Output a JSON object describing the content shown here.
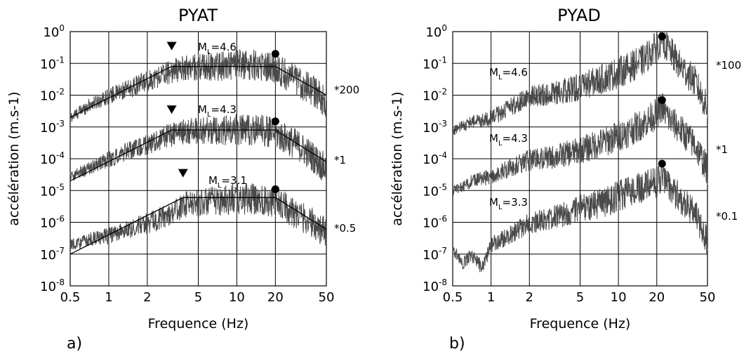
{
  "chart_data": [
    {
      "type": "line",
      "panel_label": "a)",
      "title": "PYAT",
      "xlabel": "Frequence (Hz)",
      "ylabel": "accélération (m.s-1)",
      "x_scale": "log",
      "y_scale": "log",
      "xlim": [
        0.5,
        50
      ],
      "ylim": [
        1e-08,
        1
      ],
      "xticks": [
        "0.5",
        "1",
        "2",
        "5",
        "10",
        "20",
        "50"
      ],
      "yticks": [
        "10^0",
        "10^-1",
        "10^-2",
        "10^-3",
        "10^-4",
        "10^-5",
        "10^-6",
        "10^-7",
        "10^-8"
      ],
      "grid": true,
      "series": [
        {
          "label": "M_L=4.6",
          "scale_label": "*200",
          "spectrum_points": [
            [
              0.5,
              0.002
            ],
            [
              0.7,
              0.005
            ],
            [
              1,
              0.01
            ],
            [
              1.5,
              0.018
            ],
            [
              2,
              0.03
            ],
            [
              3,
              0.06
            ],
            [
              4,
              0.08
            ],
            [
              6,
              0.09
            ],
            [
              10,
              0.1
            ],
            [
              15,
              0.1
            ],
            [
              20,
              0.08
            ],
            [
              30,
              0.03
            ],
            [
              40,
              0.015
            ],
            [
              50,
              0.006
            ]
          ],
          "model": {
            "x": [
              0.5,
              3.1,
              20,
              50
            ],
            "y": [
              0.002,
              0.08,
              0.08,
              0.01
            ]
          },
          "triangle": {
            "x": 3.1,
            "y": 0.35
          },
          "dot": {
            "x": 20,
            "y": 0.2
          }
        },
        {
          "label": "M_L=4.3",
          "scale_label": "*1",
          "spectrum_points": [
            [
              0.5,
              3e-05
            ],
            [
              0.7,
              5e-05
            ],
            [
              1,
              0.0001
            ],
            [
              1.5,
              0.0002
            ],
            [
              2,
              0.0003
            ],
            [
              3,
              0.0006
            ],
            [
              4,
              0.0008
            ],
            [
              6,
              0.0009
            ],
            [
              10,
              0.0009
            ],
            [
              15,
              0.0009
            ],
            [
              20,
              0.0007
            ],
            [
              30,
              0.0003
            ],
            [
              40,
              0.00012
            ],
            [
              50,
              5e-05
            ]
          ],
          "model": {
            "x": [
              0.5,
              3.1,
              20,
              50
            ],
            "y": [
              2e-05,
              0.0008,
              0.0008,
              8e-05
            ]
          },
          "triangle": {
            "x": 3.1,
            "y": 0.0035
          },
          "dot": {
            "x": 20,
            "y": 0.0015
          }
        },
        {
          "label": "M_L=3.1",
          "scale_label": "*0.5",
          "spectrum_points": [
            [
              0.5,
              2e-07
            ],
            [
              0.7,
              3e-07
            ],
            [
              1,
              4e-07
            ],
            [
              1.5,
              7e-07
            ],
            [
              2,
              1e-06
            ],
            [
              3,
              2e-06
            ],
            [
              4,
              4e-06
            ],
            [
              6,
              5e-06
            ],
            [
              10,
              6e-06
            ],
            [
              15,
              6e-06
            ],
            [
              20,
              5e-06
            ],
            [
              30,
              2e-06
            ],
            [
              40,
              1e-06
            ],
            [
              50,
              5e-07
            ]
          ],
          "model": {
            "x": [
              0.5,
              3.8,
              20,
              50
            ],
            "y": [
              1e-07,
              6e-06,
              6e-06,
              6e-07
            ]
          },
          "triangle": {
            "x": 3.8,
            "y": 3.5e-05
          },
          "dot": {
            "x": 20,
            "y": 1.1e-05
          }
        }
      ]
    },
    {
      "type": "line",
      "panel_label": "b)",
      "title": "PYAD",
      "xlabel": "Frequence (Hz)",
      "ylabel": "accélération (m.s-1)",
      "x_scale": "log",
      "y_scale": "log",
      "xlim": [
        0.5,
        50
      ],
      "ylim": [
        1e-08,
        1
      ],
      "xticks": [
        "0.5",
        "1",
        "2",
        "5",
        "10",
        "20",
        "50"
      ],
      "yticks": [
        "10^0",
        "10^-1",
        "10^-2",
        "10^-3",
        "10^-4",
        "10^-5",
        "10^-6",
        "10^-7",
        "10^-8"
      ],
      "grid": true,
      "series": [
        {
          "label": "M_L=4.6",
          "scale_label": "*100",
          "spectrum_points": [
            [
              0.5,
              0.0008
            ],
            [
              0.7,
              0.0015
            ],
            [
              1,
              0.002
            ],
            [
              1.5,
              0.005
            ],
            [
              2,
              0.01
            ],
            [
              3,
              0.012
            ],
            [
              5,
              0.02
            ],
            [
              8,
              0.04
            ],
            [
              12,
              0.08
            ],
            [
              16,
              0.15
            ],
            [
              20,
              0.4
            ],
            [
              22,
              0.6
            ],
            [
              25,
              0.3
            ],
            [
              30,
              0.1
            ],
            [
              40,
              0.03
            ],
            [
              50,
              0.004
            ]
          ],
          "dot": {
            "x": 22,
            "y": 0.7
          }
        },
        {
          "label": "M_L=4.3",
          "scale_label": "*1",
          "spectrum_points": [
            [
              0.5,
              1e-05
            ],
            [
              0.7,
              2e-05
            ],
            [
              1,
              3e-05
            ],
            [
              1.5,
              6e-05
            ],
            [
              2,
              0.0001
            ],
            [
              3,
              0.00012
            ],
            [
              5,
              0.0002
            ],
            [
              8,
              0.0004
            ],
            [
              12,
              0.0008
            ],
            [
              16,
              0.0015
            ],
            [
              20,
              0.003
            ],
            [
              22,
              0.005
            ],
            [
              25,
              0.002
            ],
            [
              30,
              0.001
            ],
            [
              40,
              0.0003
            ],
            [
              50,
              5e-05
            ]
          ],
          "dot": {
            "x": 22,
            "y": 0.007
          }
        },
        {
          "label": "M_L=3.3",
          "scale_label": "*0.1",
          "spectrum_points": [
            [
              0.5,
              1.5e-07
            ],
            [
              0.6,
              5e-08
            ],
            [
              0.7,
              1e-07
            ],
            [
              0.85,
              4e-08
            ],
            [
              1,
              2e-07
            ],
            [
              1.5,
              5e-07
            ],
            [
              2,
              1e-06
            ],
            [
              3,
              1.5e-06
            ],
            [
              5,
              3e-06
            ],
            [
              8,
              5e-06
            ],
            [
              12,
              1e-05
            ],
            [
              16,
              1.5e-05
            ],
            [
              20,
              2e-05
            ],
            [
              22,
              3e-05
            ],
            [
              25,
              1.5e-05
            ],
            [
              30,
              7e-06
            ],
            [
              40,
              2e-06
            ],
            [
              50,
              3e-07
            ]
          ],
          "dot": {
            "x": 22,
            "y": 7e-05
          }
        }
      ]
    }
  ]
}
